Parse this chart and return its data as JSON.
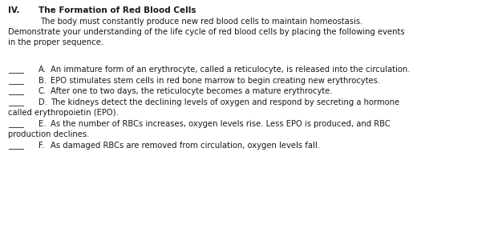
{
  "background_color": "#ffffff",
  "figsize": [
    6.21,
    3.05
  ],
  "dpi": 100,
  "header_number": "IV.",
  "header_title": "The Formation of Red Blood Cells",
  "intro_indent": "        The body must constantly produce new red blood cells to maintain homeostasis.",
  "intro_line2": "Demonstrate your understanding of the life cycle of red blood cells by placing the following events",
  "intro_line3": "in the proper sequence.",
  "items": [
    {
      "blank": "____",
      "letter": "A.",
      "text": "An immature form of an erythrocyte, called a reticulocyte, is released into the circulation."
    },
    {
      "blank": "____",
      "letter": "B.",
      "text": "EPO stimulates stem cells in red bone marrow to begin creating new erythrocytes."
    },
    {
      "blank": "____",
      "letter": "C.",
      "text": "After one to two days, the reticulocyte becomes a mature erythrocyte."
    },
    {
      "blank": "____",
      "letter": "D.",
      "text": "The kidneys detect the declining levels of oxygen and respond by secreting a hormone",
      "cont": "called erythropoietin (EPO)."
    },
    {
      "blank": "____",
      "letter": "E.",
      "text": "As the number of RBCs increases, oxygen levels rise. Less EPO is produced, and RBC",
      "cont": "production declines."
    },
    {
      "blank": "____",
      "letter": "F.",
      "text": "As damaged RBCs are removed from circulation, oxygen levels fall."
    }
  ],
  "header_fontsize": 7.5,
  "body_fontsize": 7.2,
  "item_fontsize": 7.2,
  "text_color": "#1a1a1a",
  "font_family": "DejaVu Sans Mono"
}
